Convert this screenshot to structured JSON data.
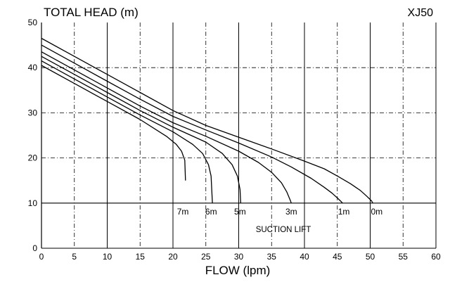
{
  "chart_data": {
    "type": "line",
    "title": "TOTAL HEAD (m)",
    "model": "XJ50",
    "xlabel": "FLOW (lpm)",
    "xlim": [
      0,
      60
    ],
    "ylim": [
      0,
      50
    ],
    "xticks": [
      0,
      5,
      10,
      15,
      20,
      25,
      30,
      35,
      40,
      45,
      50,
      55,
      60
    ],
    "yticks": [
      0,
      10,
      20,
      30,
      40,
      50
    ],
    "grid": true,
    "suction_lift_label": "SUCTION LIFT",
    "suction_lift_level": 10,
    "series": [
      {
        "name": "0m",
        "label_x": 51,
        "x": [
          0,
          5,
          10,
          15,
          20,
          25,
          30,
          35,
          40,
          43,
          45,
          47,
          48.5,
          49.5,
          50.2,
          50.4
        ],
        "y": [
          46.5,
          42.5,
          38.5,
          34.5,
          30.5,
          27.2,
          24.6,
          22.0,
          19.3,
          17.6,
          16.0,
          14.3,
          12.8,
          11.5,
          10.5,
          10
        ]
      },
      {
        "name": "1m",
        "label_x": 46,
        "x": [
          0,
          5,
          10,
          15,
          20,
          25,
          30,
          35,
          38,
          41,
          43,
          44.2,
          45.1,
          45.6,
          45.8
        ],
        "y": [
          45.0,
          41.0,
          37.0,
          33.0,
          29.2,
          26.2,
          23.3,
          20.2,
          18.0,
          15.5,
          13.5,
          12.2,
          11.0,
          10.3,
          10
        ]
      },
      {
        "name": "3m",
        "label_x": 38,
        "x": [
          0,
          5,
          10,
          15,
          20,
          25,
          30,
          33,
          35,
          36.5,
          37.3,
          37.8,
          38.0
        ],
        "y": [
          43.5,
          39.5,
          35.5,
          31.5,
          27.8,
          24.8,
          21.5,
          19.0,
          16.8,
          14.5,
          12.5,
          10.8,
          10
        ]
      },
      {
        "name": "5m",
        "label_x": 30.2,
        "x": [
          0,
          5,
          10,
          15,
          20,
          25,
          27.5,
          29,
          29.8,
          30.2,
          30.3
        ],
        "y": [
          42.5,
          38.5,
          34.5,
          30.5,
          26.8,
          23.5,
          21.0,
          18.5,
          16.0,
          13.0,
          10
        ]
      },
      {
        "name": "6m",
        "label_x": 25.8,
        "x": [
          0,
          5,
          10,
          15,
          20,
          23,
          24.5,
          25.4,
          25.8,
          26.0
        ],
        "y": [
          41.5,
          37.5,
          33.5,
          29.5,
          25.8,
          23.0,
          21.0,
          18.5,
          16.0,
          10
        ]
      },
      {
        "name": "7m",
        "label_x": 21.5,
        "x": [
          0,
          5,
          10,
          15,
          19,
          20.5,
          21.3,
          21.8,
          21.9
        ],
        "y": [
          40.5,
          36.5,
          32.5,
          28.5,
          24.8,
          23.0,
          21.5,
          19.5,
          15.0
        ]
      }
    ]
  }
}
